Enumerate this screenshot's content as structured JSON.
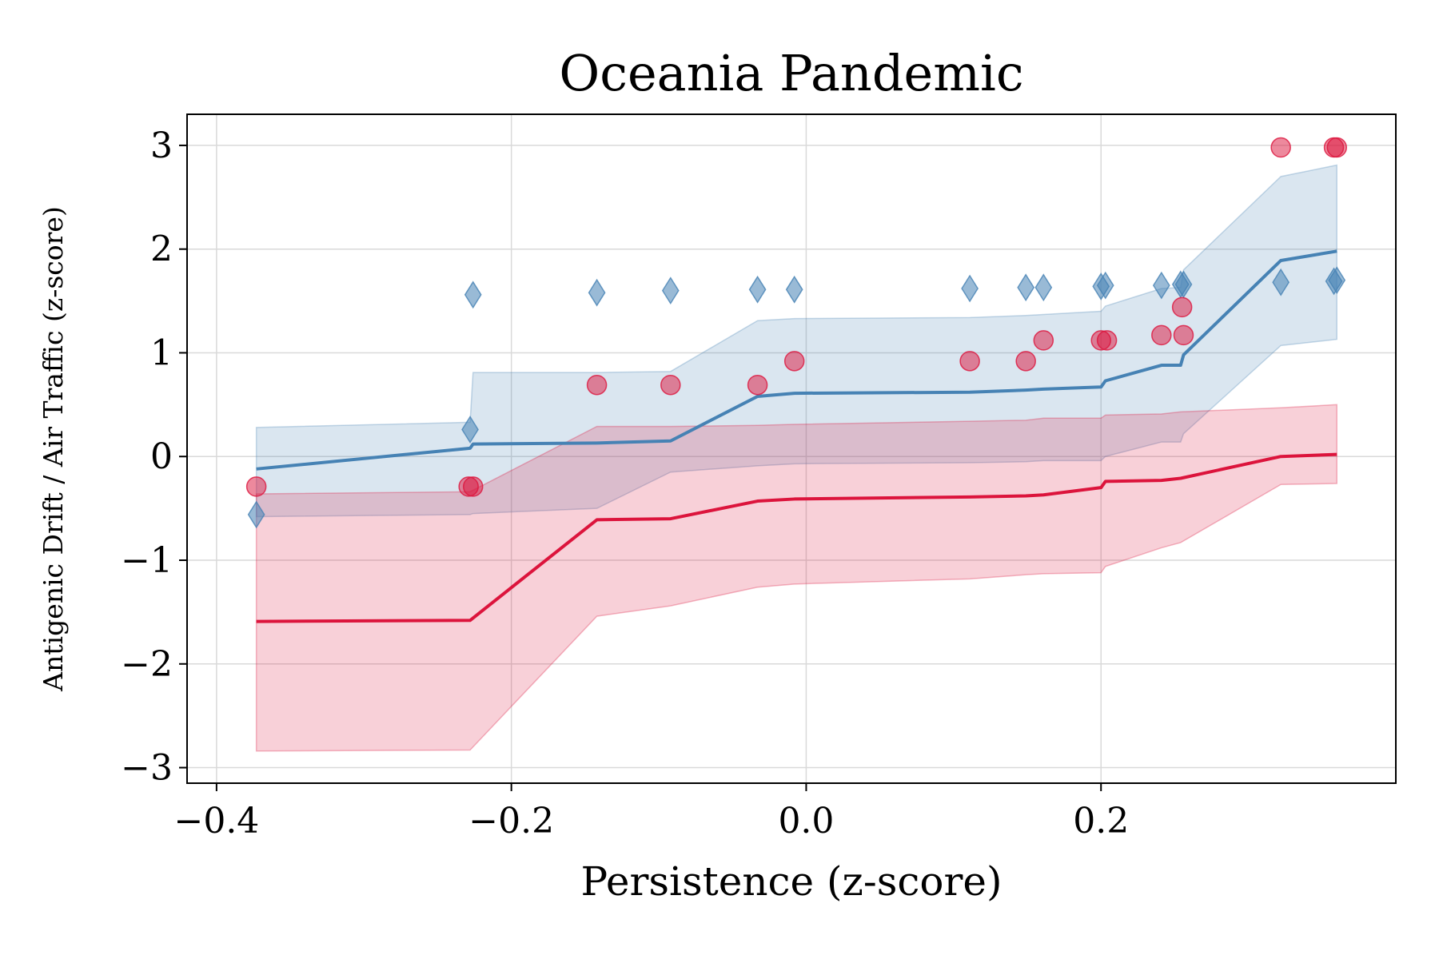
{
  "chart_data": {
    "type": "line",
    "title": "Oceania Pandemic",
    "xlabel": "Persistence (z-score)",
    "ylabel": "Antigenic Drift / Air Traffic (z-score)",
    "xlim": [
      -0.42,
      0.4
    ],
    "ylim": [
      -3.15,
      3.3
    ],
    "xticks": [
      -0.4,
      -0.2,
      0.0,
      0.2
    ],
    "xtick_labels": [
      "−0.4",
      "−0.2",
      "0.0",
      "0.2"
    ],
    "yticks": [
      -3,
      -2,
      -1,
      0,
      1,
      2,
      3
    ],
    "ytick_labels": [
      "−3",
      "−2",
      "−1",
      "0",
      "1",
      "2",
      "3"
    ],
    "grid": true,
    "legend": "none",
    "colors": {
      "blue": "#4682b4",
      "red": "#dc143c"
    },
    "series": [
      {
        "color": "#4682b4",
        "marker": "diamond",
        "fit_x": [
          -0.373,
          -0.228,
          -0.226,
          -0.142,
          -0.092,
          -0.033,
          -0.008,
          0.111,
          0.149,
          0.161,
          0.2,
          0.203,
          0.241,
          0.254,
          0.256,
          0.322,
          0.36
        ],
        "fit_y": [
          -0.12,
          0.08,
          0.12,
          0.13,
          0.15,
          0.58,
          0.61,
          0.62,
          0.64,
          0.65,
          0.67,
          0.73,
          0.88,
          0.88,
          0.98,
          1.89,
          1.98
        ],
        "band_upper": [
          0.28,
          0.33,
          0.81,
          0.81,
          0.82,
          1.31,
          1.33,
          1.34,
          1.36,
          1.37,
          1.4,
          1.45,
          1.62,
          1.63,
          1.8,
          2.7,
          2.81
        ],
        "band_lower": [
          -0.58,
          -0.56,
          -0.55,
          -0.5,
          -0.15,
          -0.09,
          -0.07,
          -0.06,
          -0.05,
          -0.04,
          -0.04,
          0.0,
          0.14,
          0.14,
          0.22,
          1.07,
          1.13
        ],
        "points_x": [
          -0.373,
          -0.226,
          -0.228,
          -0.142,
          -0.092,
          -0.033,
          -0.008,
          0.111,
          0.149,
          0.161,
          0.2,
          0.203,
          0.241,
          0.254,
          0.256,
          0.322,
          0.358,
          0.36
        ],
        "points_y": [
          -0.56,
          1.56,
          0.26,
          1.58,
          1.6,
          1.61,
          1.61,
          1.62,
          1.63,
          1.63,
          1.64,
          1.65,
          1.65,
          1.66,
          1.66,
          1.68,
          1.69,
          1.7
        ]
      },
      {
        "color": "#dc143c",
        "marker": "circle",
        "fit_x": [
          -0.373,
          -0.228,
          -0.142,
          -0.092,
          -0.033,
          -0.008,
          0.111,
          0.149,
          0.161,
          0.2,
          0.203,
          0.241,
          0.254,
          0.322,
          0.36
        ],
        "fit_y": [
          -1.59,
          -1.58,
          -0.61,
          -0.6,
          -0.43,
          -0.41,
          -0.39,
          -0.38,
          -0.37,
          -0.3,
          -0.24,
          -0.23,
          -0.21,
          0.0,
          0.02
        ],
        "band_upper": [
          -0.36,
          -0.34,
          0.29,
          0.29,
          0.3,
          0.31,
          0.34,
          0.35,
          0.37,
          0.37,
          0.4,
          0.41,
          0.43,
          0.47,
          0.5
        ],
        "band_lower": [
          -2.84,
          -2.83,
          -1.54,
          -1.44,
          -1.26,
          -1.23,
          -1.18,
          -1.14,
          -1.13,
          -1.12,
          -1.06,
          -0.88,
          -0.83,
          -0.27,
          -0.26
        ],
        "points_x": [
          -0.373,
          -0.229,
          -0.226,
          -0.142,
          -0.092,
          -0.033,
          -0.008,
          0.111,
          0.149,
          0.161,
          0.2,
          0.204,
          0.241,
          0.256,
          0.255,
          0.322,
          0.358,
          0.36
        ],
        "points_y": [
          -0.29,
          -0.29,
          -0.29,
          0.69,
          0.69,
          0.69,
          0.92,
          0.92,
          0.92,
          1.12,
          1.12,
          1.12,
          1.17,
          1.17,
          1.44,
          2.98,
          2.98,
          2.98
        ]
      }
    ]
  }
}
